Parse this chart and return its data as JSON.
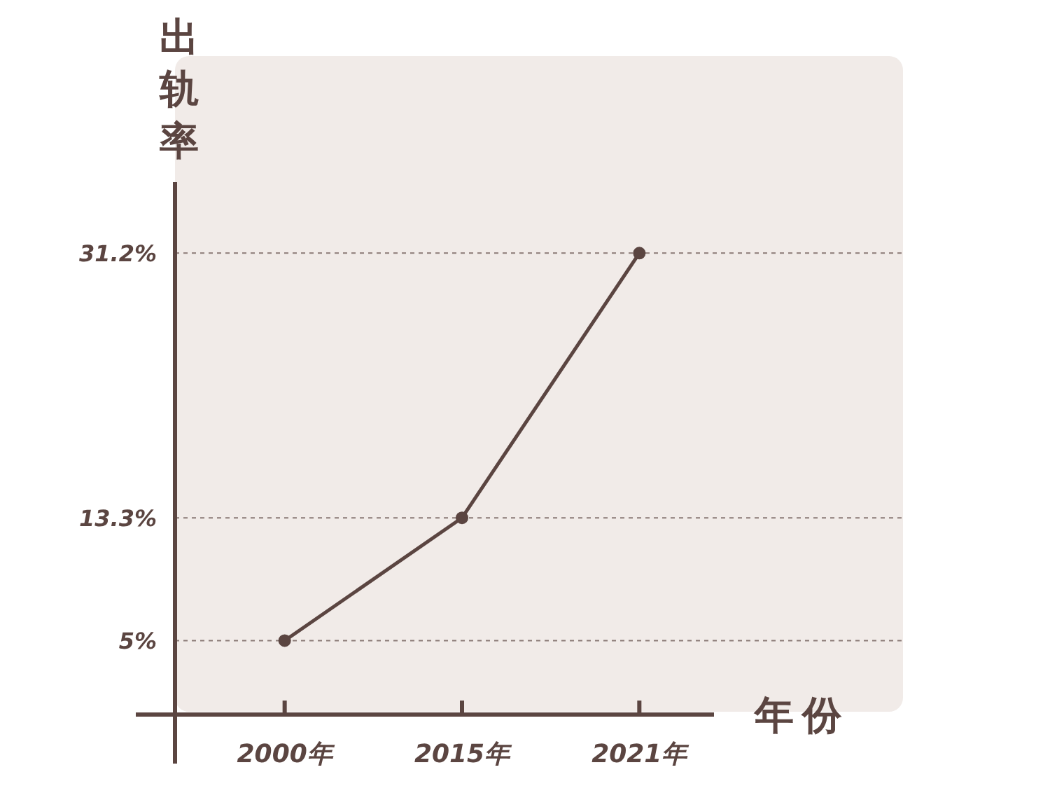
{
  "chart_data": {
    "type": "line",
    "xlabel": "年份",
    "ylabel": "出轨率",
    "categories": [
      "2000年",
      "2015年",
      "2021年"
    ],
    "series": [
      {
        "color": "#5b4541",
        "values": [
          5,
          13.3,
          31.2
        ]
      }
    ],
    "ylim": [
      0,
      36
    ],
    "yticks": [
      {
        "value": 5,
        "label": "5%"
      },
      {
        "value": 13.3,
        "label": "13.3%"
      },
      {
        "value": 31.2,
        "label": "31.2%"
      }
    ],
    "grid": "y",
    "marker": "circle",
    "line_style": "solid"
  }
}
